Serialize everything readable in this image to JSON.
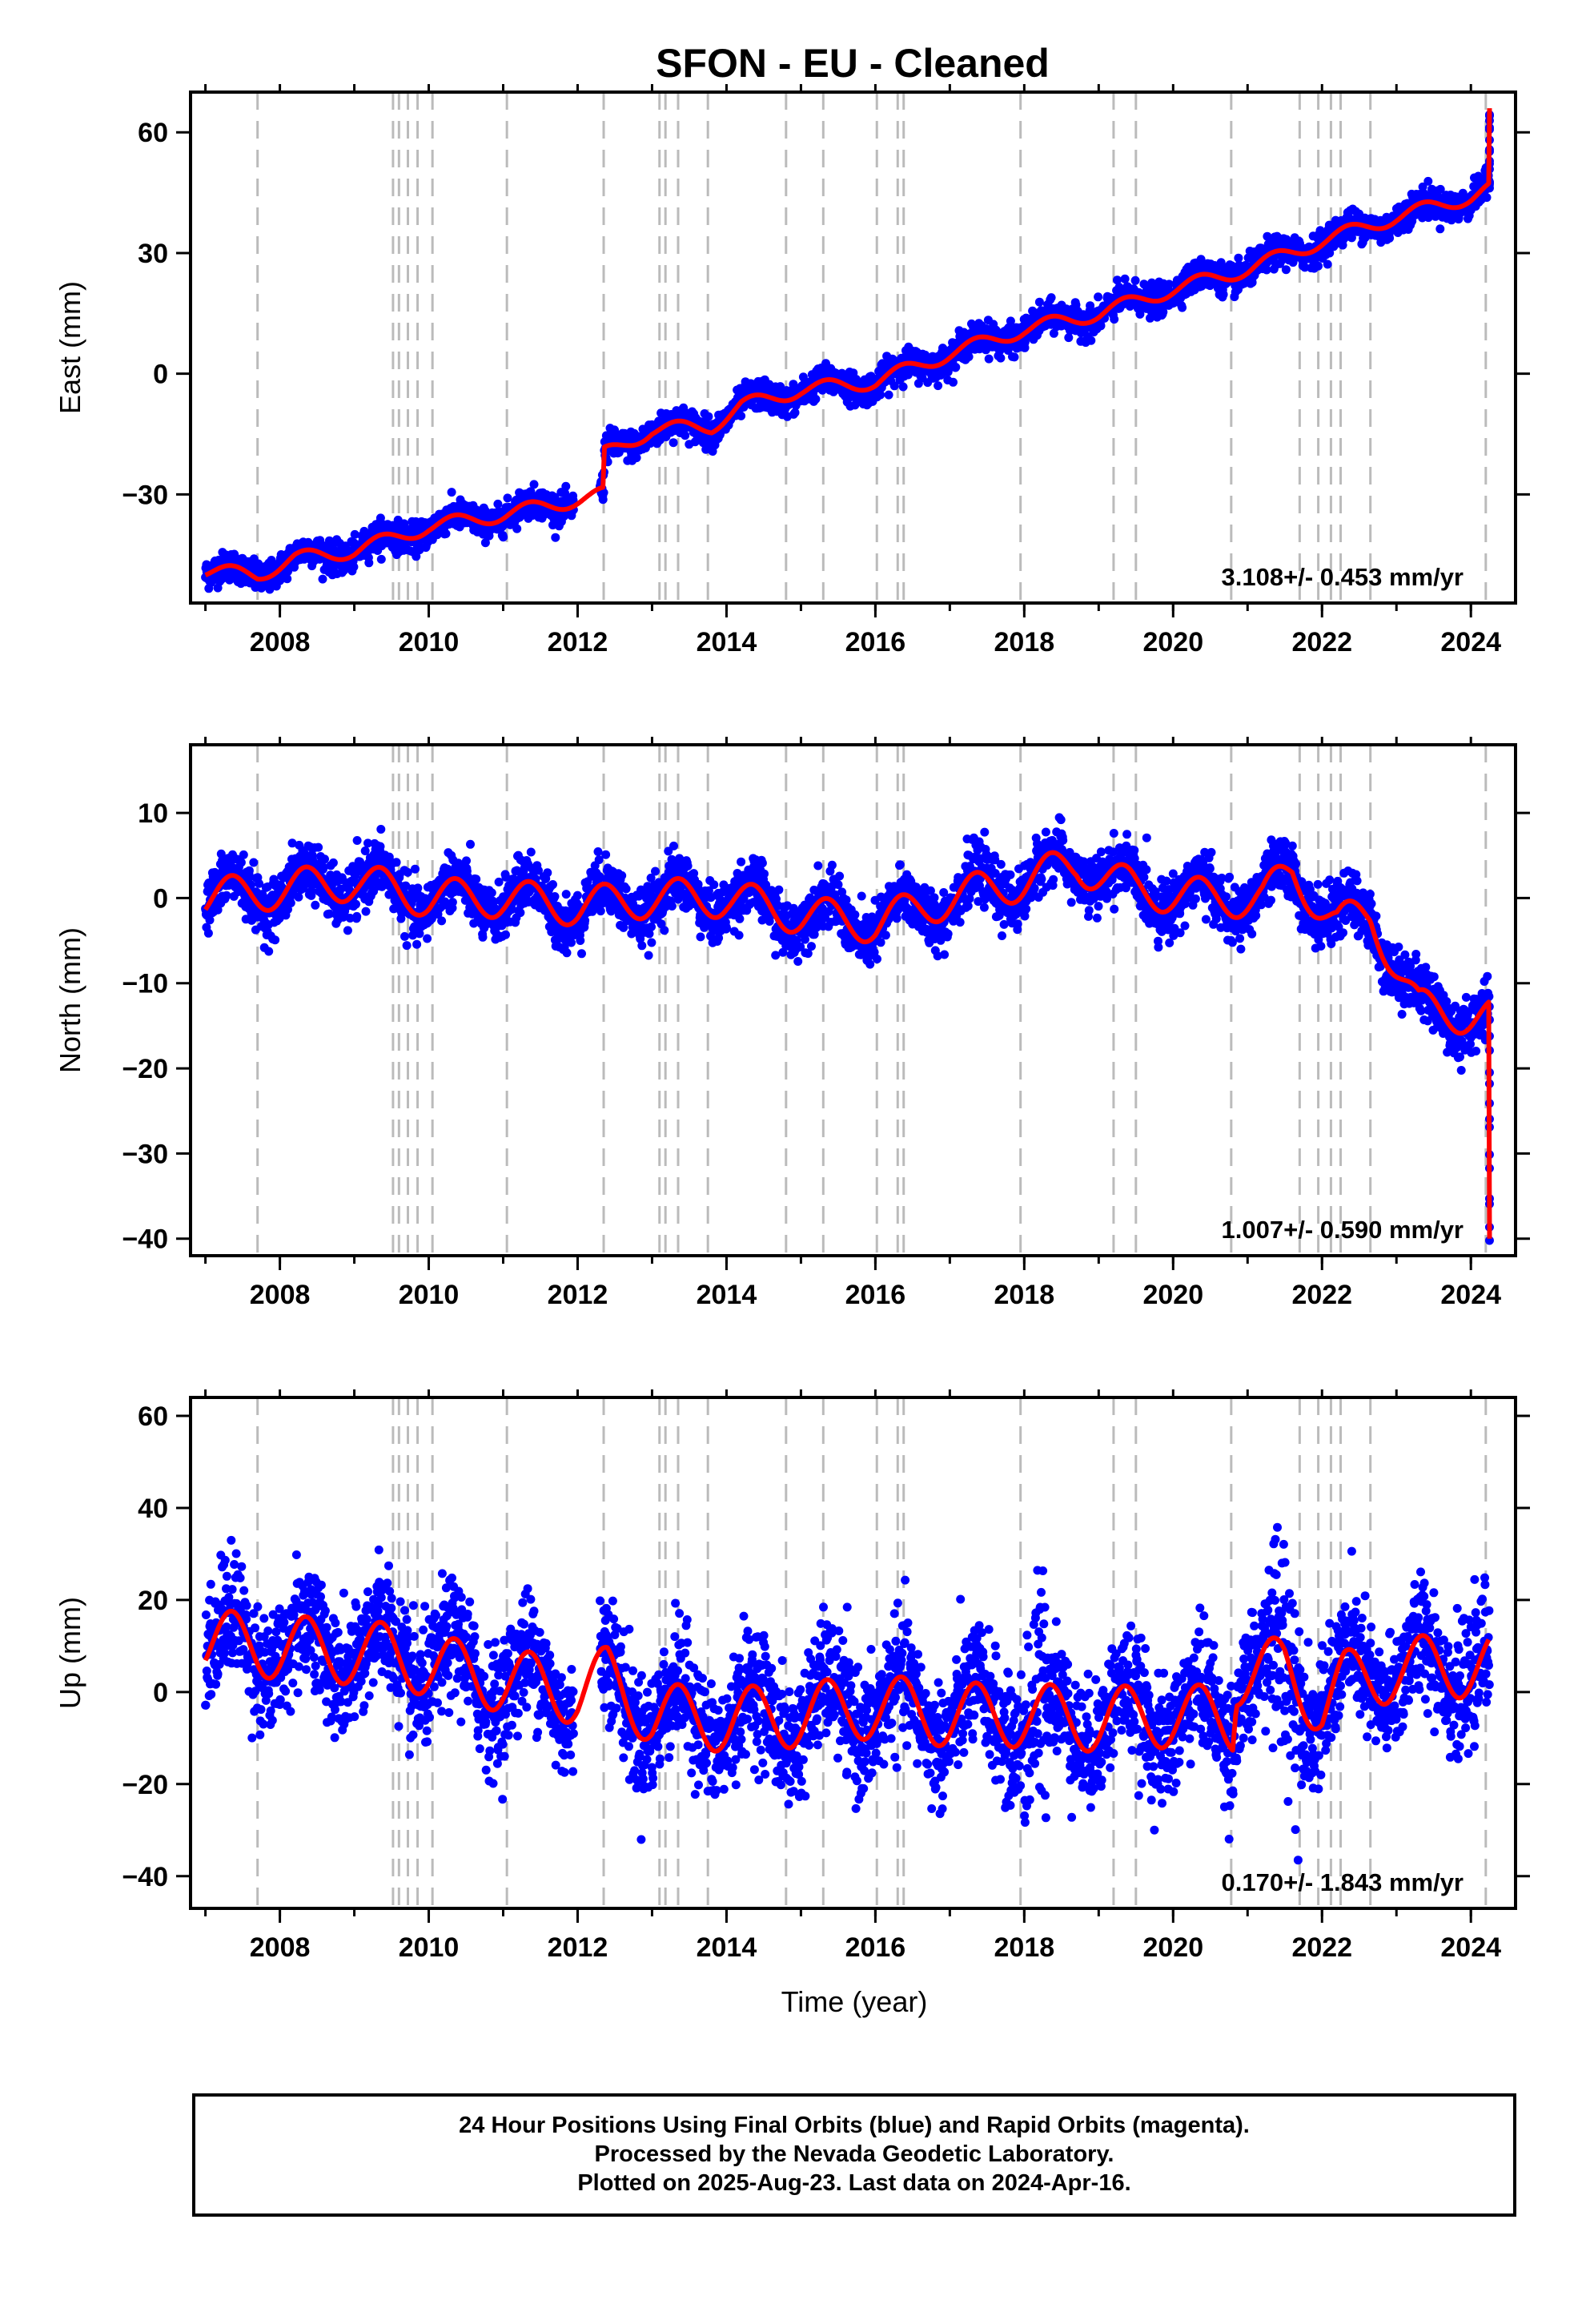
{
  "title": "SFON  - EU - Cleaned",
  "xlabel": "Time (year)",
  "footer": {
    "line1": "24 Hour Positions Using Final Orbits (blue) and Rapid Orbits (magenta).",
    "line2": "Processed by the Nevada Geodetic Laboratory.",
    "line3": "Plotted on 2025-Aug-23. Last data on 2024-Apr-16."
  },
  "colors": {
    "final_orbits": "#0000ff",
    "model": "#ff0000",
    "event_lines": "#bbbbbb"
  },
  "chart_data": [
    {
      "type": "scatter",
      "component": "east",
      "ylabel": "East (mm)",
      "rate_text": "3.108+/- 0.453 mm/yr",
      "xlim": [
        2006.8,
        2024.6
      ],
      "ylim": [
        -57,
        70
      ],
      "xticks": [
        2008,
        2010,
        2012,
        2014,
        2016,
        2018,
        2020,
        2022,
        2024
      ],
      "yticks": [
        -30,
        0,
        30,
        60
      ],
      "grid": false,
      "event_lines": [
        2007.7,
        2009.52,
        2009.6,
        2009.72,
        2009.85,
        2010.05,
        2011.05,
        2012.35,
        2013.1,
        2013.18,
        2013.35,
        2013.75,
        2014.8,
        2015.3,
        2016.02,
        2016.3,
        2016.38,
        2017.95,
        2019.2,
        2019.5,
        2020.78,
        2021.7,
        2021.95,
        2022.12,
        2022.25,
        2022.65,
        2024.2
      ],
      "series": [
        {
          "values_description_free": true,
          "trend": [
            [
              2007.0,
              -49
            ],
            [
              2007.7,
              -50
            ],
            [
              2008.2,
              -46
            ],
            [
              2009.0,
              -44
            ],
            [
              2010.0,
              -38
            ],
            [
              2011.0,
              -35
            ],
            [
              2012.35,
              -30
            ],
            [
              2012.36,
              -20
            ],
            [
              2013.0,
              -14
            ],
            [
              2013.8,
              -13
            ],
            [
              2014.2,
              -8
            ],
            [
              2015.0,
              -4
            ],
            [
              2016.0,
              -2
            ],
            [
              2017.0,
              5
            ],
            [
              2018.0,
              11
            ],
            [
              2019.0,
              15
            ],
            [
              2020.0,
              21
            ],
            [
              2021.0,
              26
            ],
            [
              2022.0,
              33
            ],
            [
              2023.0,
              39
            ],
            [
              2024.0,
              44
            ],
            [
              2024.25,
              46
            ]
          ],
          "seasonal_amplitude": 1.8,
          "scatter_sigma": 1.8,
          "spike_end": [
            2024.25,
            66
          ]
        }
      ]
    },
    {
      "type": "scatter",
      "component": "north",
      "ylabel": "North (mm)",
      "rate_text": "1.007+/- 0.590 mm/yr",
      "xlim": [
        2006.8,
        2024.6
      ],
      "ylim": [
        -42,
        18
      ],
      "xticks": [
        2008,
        2010,
        2012,
        2014,
        2016,
        2018,
        2020,
        2022,
        2024
      ],
      "yticks": [
        -40,
        -30,
        -20,
        -10,
        0,
        10
      ],
      "grid": false,
      "event_lines": [
        2007.7,
        2009.52,
        2009.6,
        2009.72,
        2009.85,
        2010.05,
        2011.05,
        2012.35,
        2013.1,
        2013.18,
        2013.35,
        2013.75,
        2014.8,
        2015.3,
        2016.02,
        2016.3,
        2016.38,
        2017.95,
        2019.2,
        2019.5,
        2020.78,
        2021.7,
        2021.95,
        2022.12,
        2022.25,
        2022.65,
        2024.2
      ],
      "series": [
        {
          "trend": [
            [
              2007.0,
              0
            ],
            [
              2008.0,
              1
            ],
            [
              2009.0,
              2
            ],
            [
              2010.0,
              0
            ],
            [
              2011.0,
              0
            ],
            [
              2012.0,
              -1
            ],
            [
              2013.0,
              0
            ],
            [
              2014.0,
              0
            ],
            [
              2015.0,
              -2
            ],
            [
              2016.0,
              -3
            ],
            [
              2017.0,
              0
            ],
            [
              2018.0,
              2
            ],
            [
              2018.7,
              4
            ],
            [
              2019.5,
              1
            ],
            [
              2020.5,
              0
            ],
            [
              2021.2,
              0
            ],
            [
              2021.6,
              3
            ],
            [
              2022.2,
              -3
            ],
            [
              2022.65,
              -2
            ],
            [
              2023.3,
              -13
            ],
            [
              2024.25,
              -14
            ]
          ],
          "seasonal_amplitude": 2.3,
          "scatter_sigma": 1.6,
          "spike_end": [
            2024.25,
            -40
          ]
        }
      ]
    },
    {
      "type": "scatter",
      "component": "up",
      "ylabel": "Up (mm)",
      "rate_text": "0.170+/- 1.843 mm/yr",
      "xlim": [
        2006.8,
        2024.6
      ],
      "ylim": [
        -47,
        64
      ],
      "xticks": [
        2008,
        2010,
        2012,
        2014,
        2016,
        2018,
        2020,
        2022,
        2024
      ],
      "yticks": [
        -40,
        -20,
        0,
        20,
        40,
        60
      ],
      "grid": false,
      "event_lines": [
        2007.7,
        2009.52,
        2009.6,
        2009.72,
        2009.85,
        2010.05,
        2011.05,
        2012.35,
        2013.1,
        2013.18,
        2013.35,
        2013.75,
        2014.8,
        2015.3,
        2016.02,
        2016.3,
        2016.38,
        2017.95,
        2019.2,
        2019.5,
        2020.78,
        2021.7,
        2021.95,
        2022.12,
        2022.25,
        2022.65,
        2024.2
      ],
      "series": [
        {
          "trend": [
            [
              2007.0,
              11
            ],
            [
              2009.5,
              8
            ],
            [
              2010.5,
              4
            ],
            [
              2012.0,
              0
            ],
            [
              2012.4,
              3
            ],
            [
              2013.0,
              -5
            ],
            [
              2014.0,
              -6
            ],
            [
              2015.0,
              -5
            ],
            [
              2016.0,
              -3
            ],
            [
              2017.0,
              -5
            ],
            [
              2018.0,
              -5
            ],
            [
              2019.0,
              -6
            ],
            [
              2020.0,
              -5
            ],
            [
              2020.8,
              -6
            ],
            [
              2020.85,
              4
            ],
            [
              2021.5,
              5
            ],
            [
              2022.0,
              -3
            ],
            [
              2022.3,
              2
            ],
            [
              2023.0,
              5
            ],
            [
              2024.25,
              6
            ]
          ],
          "seasonal_amplitude": 7,
          "scatter_sigma": 6.5,
          "spike_end": null
        }
      ]
    }
  ]
}
